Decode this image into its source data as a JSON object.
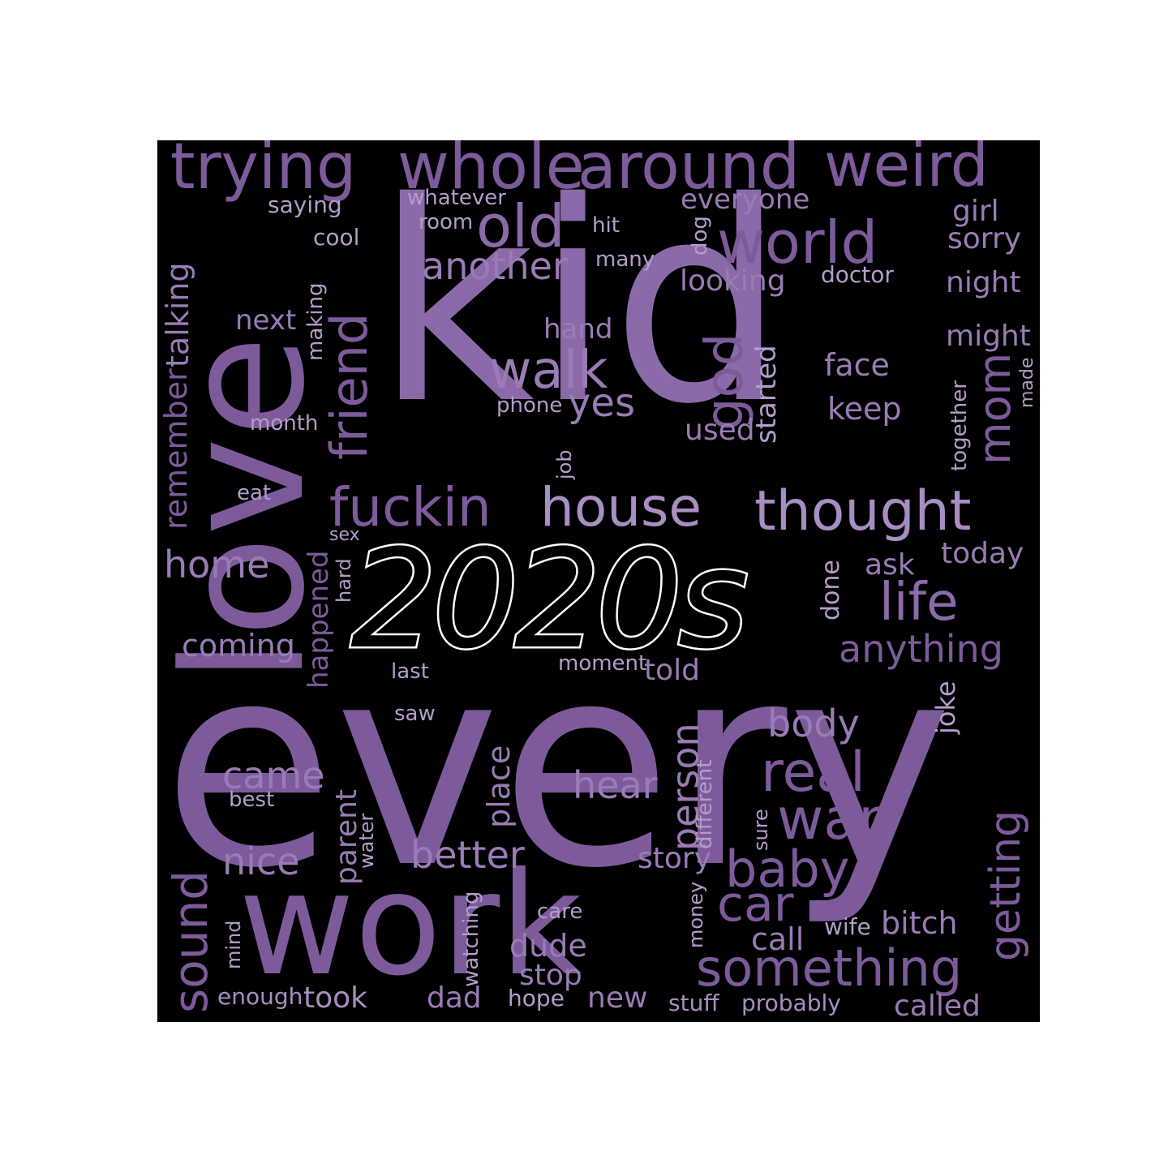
{
  "title": "2020s",
  "colors": {
    "background": "#000000",
    "page": "#ffffff",
    "word": "#8a6aa8",
    "title": "#ffffff"
  },
  "words": {
    "kid": "kid",
    "every": "every",
    "love": "love",
    "work": "work",
    "trying": "trying",
    "whole": "whole",
    "around": "around",
    "weird": "weird",
    "old": "old",
    "world": "world",
    "another": "another",
    "everyone": "everyone",
    "whatever": "whatever",
    "saying": "saying",
    "room": "room",
    "hit": "hit",
    "dog": "dog",
    "girl": "girl",
    "sorry": "sorry",
    "cool": "cool",
    "many": "many",
    "looking": "looking",
    "doctor": "doctor",
    "night": "night",
    "talking": "talking",
    "next": "next",
    "making": "making",
    "friend": "friend",
    "hand": "hand",
    "might": "might",
    "walk": "walk",
    "god": "god",
    "face": "face",
    "phone": "phone",
    "yes": "yes",
    "started": "started",
    "keep": "keep",
    "mom": "mom",
    "made": "made",
    "together": "together",
    "month": "month",
    "used": "used",
    "remember": "remember",
    "job": "job",
    "eat": "eat",
    "fuckin": "fuckin",
    "house": "house",
    "thought": "thought",
    "sex": "sex",
    "home": "home",
    "hard": "hard",
    "happened": "happened",
    "done": "done",
    "ask": "ask",
    "today": "today",
    "life": "life",
    "coming": "coming",
    "anything": "anything",
    "last": "last",
    "moment": "moment",
    "told": "told",
    "joke": "joke",
    "saw": "saw",
    "body": "body",
    "person": "person",
    "different": "different",
    "came": "came",
    "place": "place",
    "hear": "hear",
    "real": "real",
    "best": "best",
    "parent": "parent",
    "water": "water",
    "wan": "wan",
    "getting": "getting",
    "sure": "sure",
    "sound": "sound",
    "nice": "nice",
    "better": "better",
    "story": "story",
    "baby": "baby",
    "watching": "watching",
    "money": "money",
    "car": "car",
    "care": "care",
    "wife": "wife",
    "bitch": "bitch",
    "mind": "mind",
    "dude": "dude",
    "call": "call",
    "something": "something",
    "stop": "stop",
    "enough": "enough",
    "took": "took",
    "dad": "dad",
    "hope": "hope",
    "new": "new",
    "stuff": "stuff",
    "probably": "probably",
    "called": "called"
  }
}
